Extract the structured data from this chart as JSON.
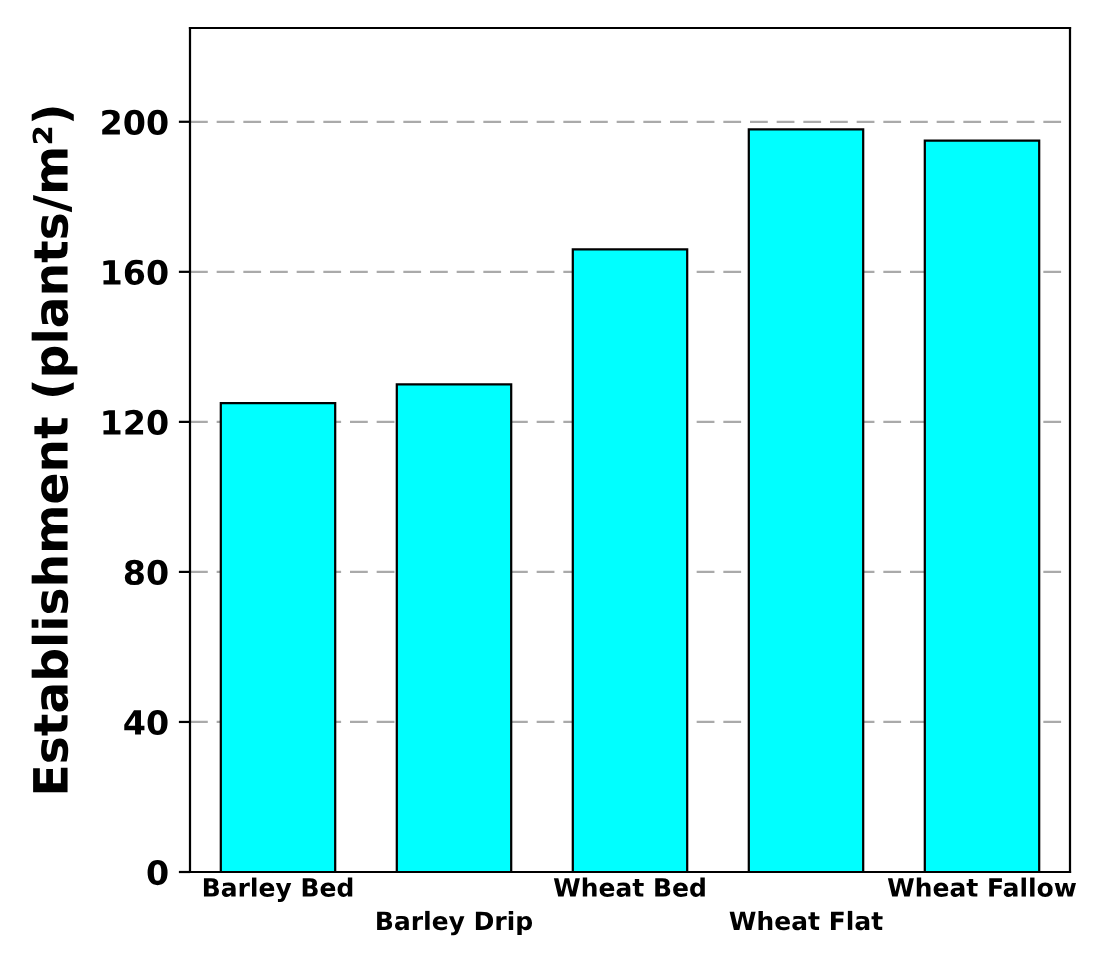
{
  "chart_data": {
    "type": "bar",
    "ylabel": "Establishment (plants/m²)",
    "categories": [
      "Barley Bed",
      "Barley Drip",
      "Wheat Bed",
      "Wheat Flat",
      "Wheat Fallow"
    ],
    "values": [
      125,
      130,
      166,
      198,
      195
    ],
    "color": "#00ffff",
    "ylim": [
      0,
      225
    ],
    "yticks": [
      0,
      40,
      80,
      120,
      160,
      200
    ],
    "grid": "y"
  }
}
